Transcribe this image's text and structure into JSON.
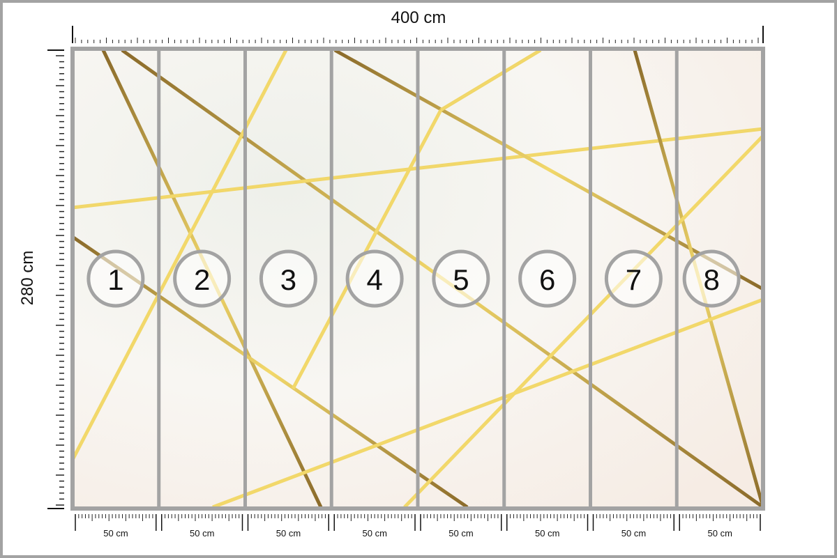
{
  "width_label": "400 cm",
  "height_label": "280 cm",
  "panels": [
    {
      "number": "1",
      "width": "50 cm"
    },
    {
      "number": "2",
      "width": "50 cm"
    },
    {
      "number": "3",
      "width": "50 cm"
    },
    {
      "number": "4",
      "width": "50 cm"
    },
    {
      "number": "5",
      "width": "50 cm"
    },
    {
      "number": "6",
      "width": "50 cm"
    },
    {
      "number": "7",
      "width": "50 cm"
    },
    {
      "number": "8",
      "width": "50 cm"
    }
  ],
  "colors": {
    "frame": "#a3a3a3",
    "gold_dark": "#8a6a2a",
    "gold_light": "#f2d86a",
    "marble": "#f4f3ee"
  }
}
